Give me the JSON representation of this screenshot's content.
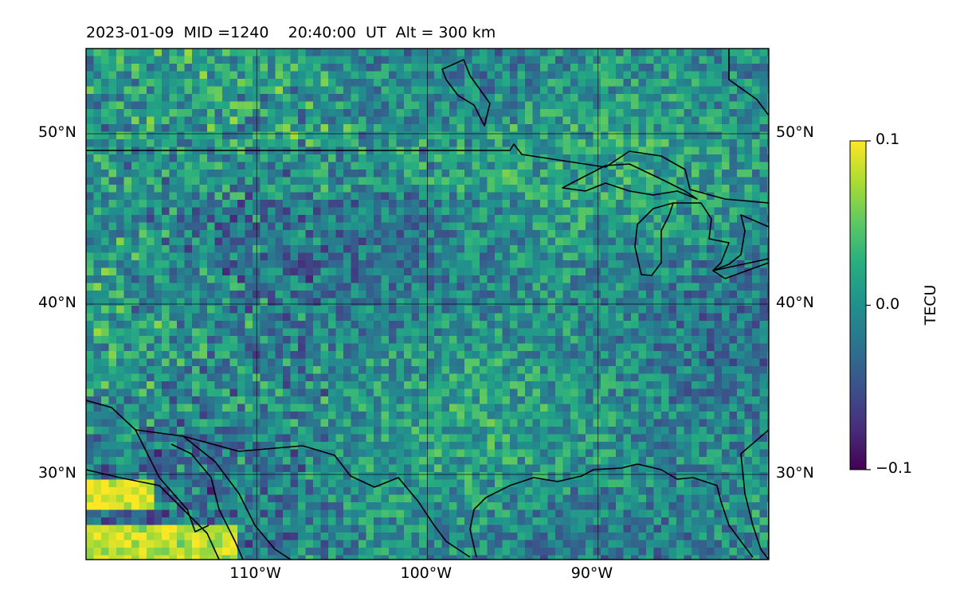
{
  "title": {
    "date": "2023-01-09",
    "mid": "MID =1240",
    "time": "20:40:00  UT",
    "alt": "Alt = 300 km"
  },
  "map": {
    "lon_range": [
      -120,
      -80
    ],
    "lat_range": [
      25,
      55
    ],
    "lon_ticks": [
      {
        "value": -110,
        "label": "110°W"
      },
      {
        "value": -100,
        "label": "100°W"
      },
      {
        "value": -90,
        "label": "90°W"
      }
    ],
    "lat_ticks": [
      {
        "value": 50,
        "label": "50°N"
      },
      {
        "value": 40,
        "label": "40°N"
      },
      {
        "value": 30,
        "label": "30°N"
      }
    ],
    "grid": true,
    "field": "TEC perturbation, mostly near 0, with enhancements near 48-50°N and 27°N along western edge",
    "colors": {
      "low": "#440154",
      "mid": "#21908d",
      "high": "#fde725",
      "coast": "#000000"
    }
  },
  "colorbar": {
    "label": "TECU",
    "min": -0.1,
    "max": 0.1,
    "colormap": "viridis",
    "ticks": [
      {
        "value": 0.1,
        "label": "0.1"
      },
      {
        "value": 0.0,
        "label": "0.0"
      },
      {
        "value": -0.1,
        "label": "−0.1"
      }
    ]
  }
}
